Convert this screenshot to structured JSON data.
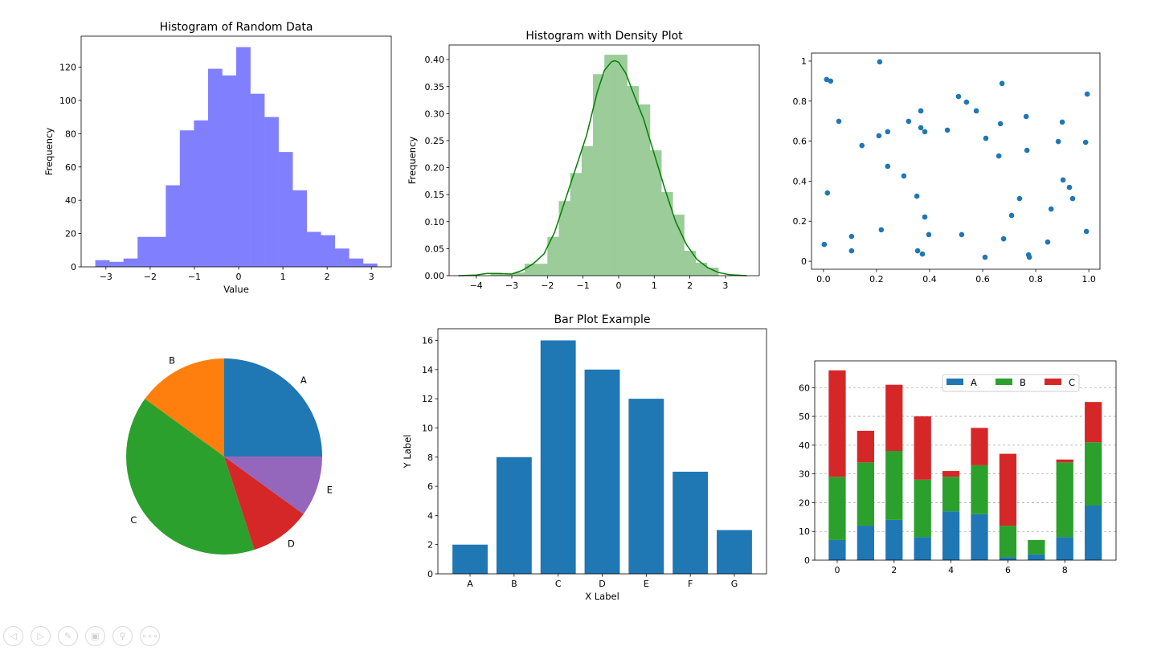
{
  "toolbar": [
    {
      "icon": "back-icon",
      "glyph": "◁"
    },
    {
      "icon": "forward-icon",
      "glyph": "▷"
    },
    {
      "icon": "pen-icon",
      "glyph": "✎"
    },
    {
      "icon": "subplots-icon",
      "glyph": "▣"
    },
    {
      "icon": "zoom-icon",
      "glyph": "⚲"
    },
    {
      "icon": "more-icon",
      "glyph": "∘∘∘"
    }
  ],
  "chart_data": [
    {
      "type": "bar",
      "subtype": "histogram",
      "title": "Histogram of Random Data",
      "xlabel": "Value",
      "ylabel": "Frequency",
      "bin_start": -3.24,
      "bin_width": 0.3185,
      "values": [
        4,
        3,
        5,
        18,
        18,
        49,
        82,
        88,
        119,
        115,
        132,
        104,
        90,
        69,
        46,
        21,
        19,
        11,
        5,
        2
      ],
      "xlim": [
        -3.56,
        3.45
      ],
      "ylim": [
        0,
        138.6
      ],
      "xticks": [
        -3,
        -2,
        -1,
        0,
        1,
        2,
        3
      ],
      "yticks": [
        0,
        20,
        40,
        60,
        80,
        100,
        120
      ],
      "color": "#8080ff"
    },
    {
      "type": "bar",
      "subtype": "histogram-density",
      "title": "Histogram with Density Plot",
      "xlabel": "",
      "ylabel": "Frequency",
      "bin_start": -3.6,
      "bin_width": 0.32,
      "values": [
        0.005,
        0.002,
        0.006,
        0.022,
        0.022,
        0.072,
        0.138,
        0.19,
        0.24,
        0.373,
        0.409,
        0.409,
        0.351,
        0.317,
        0.232,
        0.155,
        0.113,
        0.046,
        0.024,
        0.015
      ],
      "density_curve": {
        "x": [
          -4.5,
          -4.0,
          -3.7,
          -3.4,
          -3.0,
          -2.7,
          -2.4,
          -2.1,
          -1.8,
          -1.5,
          -1.2,
          -0.9,
          -0.6,
          -0.4,
          -0.2,
          -0.1,
          0.0,
          0.2,
          0.4,
          0.7,
          1.0,
          1.3,
          1.6,
          1.9,
          2.2,
          2.5,
          2.8,
          3.1,
          3.6
        ],
        "y": [
          0.0,
          0.001,
          0.004,
          0.004,
          0.003,
          0.01,
          0.022,
          0.04,
          0.08,
          0.14,
          0.2,
          0.26,
          0.34,
          0.38,
          0.396,
          0.398,
          0.395,
          0.375,
          0.34,
          0.29,
          0.225,
          0.16,
          0.1,
          0.058,
          0.03,
          0.015,
          0.006,
          0.002,
          0.0
        ],
        "color": "#008000"
      },
      "xlim": [
        -4.76,
        3.95
      ],
      "ylim": [
        0,
        0.427
      ],
      "xticks": [
        -4,
        -3,
        -2,
        -1,
        0,
        1,
        2,
        3
      ],
      "yticks": [
        0.0,
        0.05,
        0.1,
        0.15,
        0.2,
        0.25,
        0.3,
        0.35,
        0.4
      ],
      "ytick_labels": [
        "0.00",
        "0.05",
        "0.10",
        "0.15",
        "0.20",
        "0.25",
        "0.30",
        "0.35",
        "0.40"
      ],
      "color": "#9bcc99"
    },
    {
      "type": "scatter",
      "title": "",
      "x": [
        0.012,
        0.027,
        0.212,
        0.058,
        0.015,
        0.003,
        0.106,
        0.106,
        0.145,
        0.209,
        0.242,
        0.242,
        0.218,
        0.303,
        0.321,
        0.367,
        0.367,
        0.382,
        0.352,
        0.382,
        0.397,
        0.355,
        0.373,
        0.467,
        0.509,
        0.539,
        0.576,
        0.521,
        0.612,
        0.667,
        0.673,
        0.661,
        0.679,
        0.609,
        0.709,
        0.739,
        0.764,
        0.767,
        0.773,
        0.776,
        0.845,
        0.858,
        0.885,
        0.9,
        0.903,
        0.927,
        0.939,
        0.994,
        0.988,
        0.991
      ],
      "y": [
        0.908,
        0.9,
        0.996,
        0.699,
        0.341,
        0.084,
        0.124,
        0.052,
        0.578,
        0.627,
        0.647,
        0.474,
        0.157,
        0.426,
        0.699,
        0.751,
        0.667,
        0.647,
        0.325,
        0.221,
        0.133,
        0.052,
        0.036,
        0.655,
        0.823,
        0.795,
        0.751,
        0.133,
        0.614,
        0.687,
        0.888,
        0.526,
        0.112,
        0.02,
        0.229,
        0.313,
        0.723,
        0.554,
        0.032,
        0.02,
        0.096,
        0.261,
        0.598,
        0.695,
        0.406,
        0.369,
        0.313,
        0.835,
        0.594,
        0.149
      ],
      "xlim": [
        -0.045,
        1.042
      ],
      "ylim": [
        -0.04,
        1.04
      ],
      "xticks": [
        0.0,
        0.2,
        0.4,
        0.6,
        0.8,
        1.0
      ],
      "yticks": [
        0.0,
        0.2,
        0.4,
        0.6,
        0.8,
        1.0
      ],
      "color": "#1f77b4"
    },
    {
      "type": "pie",
      "labels": [
        "A",
        "B",
        "C",
        "D",
        "E"
      ],
      "values": [
        25,
        15,
        40,
        10,
        10
      ],
      "colors": [
        "#1f77b4",
        "#ff7f0e",
        "#2ca02c",
        "#d62728",
        "#9467bd"
      ]
    },
    {
      "type": "bar",
      "title": "Bar Plot Example",
      "xlabel": "X Label",
      "ylabel": "Y Label",
      "categories": [
        "A",
        "B",
        "C",
        "D",
        "E",
        "F",
        "G"
      ],
      "values": [
        2,
        8,
        16,
        14,
        12,
        7,
        3
      ],
      "xlim": [
        -0.73,
        6.73
      ],
      "ylim": [
        0,
        16.8
      ],
      "yticks": [
        0,
        2,
        4,
        6,
        8,
        10,
        12,
        14,
        16
      ],
      "color": "#1f77b4"
    },
    {
      "type": "bar",
      "subtype": "stacked",
      "x": [
        0,
        1,
        2,
        3,
        4,
        5,
        6,
        7,
        8,
        9
      ],
      "series": [
        {
          "name": "A",
          "values": [
            7,
            12,
            14,
            8,
            17,
            16,
            1,
            2,
            8,
            19
          ],
          "color": "#1f77b4"
        },
        {
          "name": "B",
          "values": [
            22,
            22,
            24,
            20,
            12,
            17,
            11,
            5,
            26,
            22
          ],
          "color": "#2ca02c"
        },
        {
          "name": "C",
          "values": [
            37,
            11,
            23,
            22,
            2,
            13,
            25,
            0,
            1,
            14
          ],
          "color": "#d62728"
        }
      ],
      "xlim": [
        -0.79,
        9.8
      ],
      "ylim": [
        0,
        69.3
      ],
      "xticks": [
        0,
        2,
        4,
        6,
        8
      ],
      "yticks": [
        0,
        10,
        20,
        30,
        40,
        50,
        60
      ],
      "grid": "y-dashed",
      "legend": "top-center"
    }
  ]
}
